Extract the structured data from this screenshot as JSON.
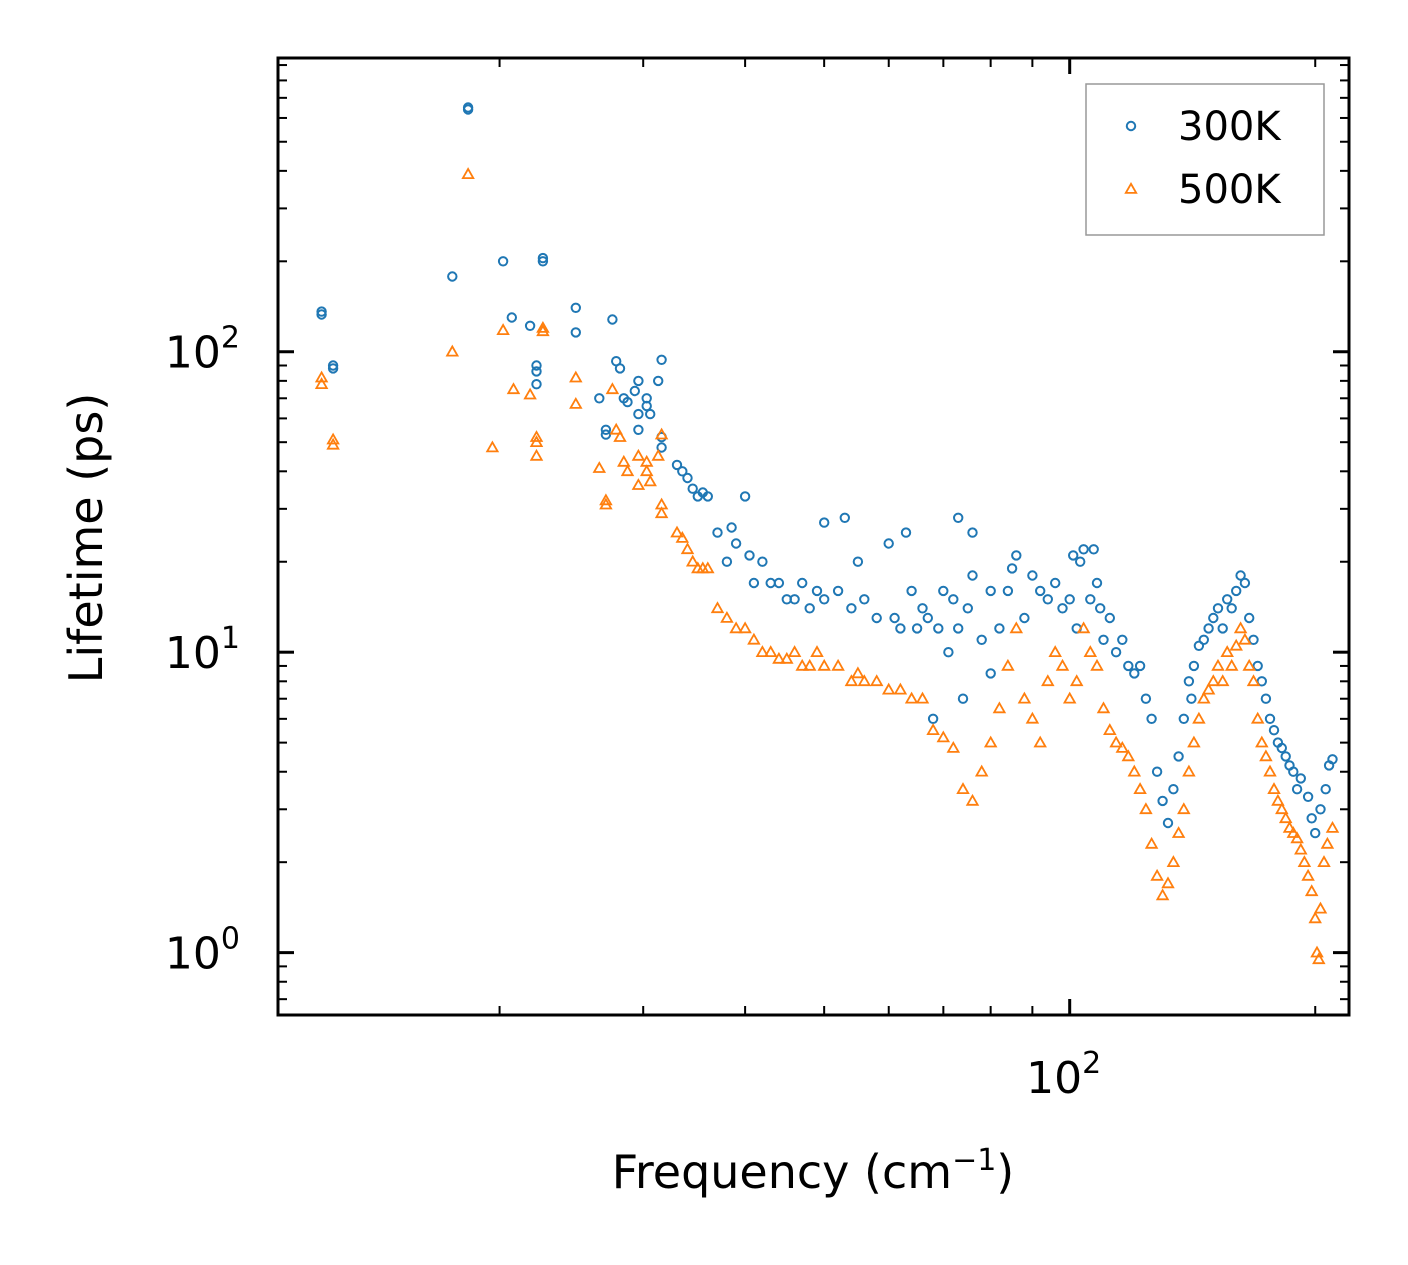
{
  "chart_data": {
    "type": "scatter",
    "xscale": "log",
    "yscale": "log",
    "xlabel": "Frequency (cm⁻¹)",
    "xlabel_base": "Frequency (cm",
    "xlabel_sup": "−1",
    "xlabel_close": ")",
    "ylabel": "Lifetime (ps)",
    "xlim": [
      10.7,
      220
    ],
    "ylim": [
      0.62,
      950
    ],
    "xtick_labels": [
      {
        "value": 100,
        "base": "10",
        "exp": "2"
      }
    ],
    "ytick_labels": [
      {
        "value": 1,
        "base": "10",
        "exp": "0"
      },
      {
        "value": 10,
        "base": "10",
        "exp": "1"
      },
      {
        "value": 100,
        "base": "10",
        "exp": "2"
      }
    ],
    "legend_position": "upper right",
    "series": [
      {
        "name": "300K",
        "color": "#1f77b4",
        "marker": "circle",
        "points": [
          [
            12.1,
            136
          ],
          [
            12.1,
            133
          ],
          [
            12.5,
            90
          ],
          [
            12.5,
            88
          ],
          [
            17.5,
            178
          ],
          [
            18.3,
            650
          ],
          [
            18.3,
            640
          ],
          [
            20.2,
            200
          ],
          [
            20.7,
            130
          ],
          [
            21.8,
            122
          ],
          [
            22.2,
            90
          ],
          [
            22.2,
            86
          ],
          [
            22.2,
            78
          ],
          [
            22.6,
            205
          ],
          [
            22.6,
            200
          ],
          [
            24.8,
            140
          ],
          [
            24.8,
            116
          ],
          [
            26.5,
            70
          ],
          [
            27.0,
            55
          ],
          [
            27.0,
            53
          ],
          [
            27.5,
            128
          ],
          [
            27.8,
            93
          ],
          [
            28.1,
            88
          ],
          [
            28.4,
            70
          ],
          [
            28.7,
            68
          ],
          [
            29.3,
            74
          ],
          [
            29.6,
            80
          ],
          [
            29.6,
            62
          ],
          [
            29.6,
            55
          ],
          [
            30.3,
            70
          ],
          [
            30.3,
            66
          ],
          [
            30.6,
            62
          ],
          [
            31.3,
            80
          ],
          [
            31.6,
            94
          ],
          [
            31.6,
            52
          ],
          [
            31.6,
            48
          ],
          [
            33,
            42
          ],
          [
            33.5,
            40
          ],
          [
            34,
            38
          ],
          [
            34.5,
            35
          ],
          [
            35,
            33
          ],
          [
            35.5,
            34
          ],
          [
            36,
            33
          ],
          [
            37,
            25
          ],
          [
            38,
            20
          ],
          [
            38.5,
            26
          ],
          [
            39,
            23
          ],
          [
            40,
            33
          ],
          [
            40.5,
            21
          ],
          [
            41,
            17
          ],
          [
            42,
            20
          ],
          [
            43,
            17
          ],
          [
            44,
            17
          ],
          [
            45,
            15
          ],
          [
            46,
            15
          ],
          [
            47,
            17
          ],
          [
            48,
            14
          ],
          [
            49,
            16
          ],
          [
            50,
            15
          ],
          [
            50,
            27
          ],
          [
            52,
            16
          ],
          [
            53,
            28
          ],
          [
            54,
            14
          ],
          [
            55,
            20
          ],
          [
            56,
            15
          ],
          [
            58,
            13
          ],
          [
            60,
            23
          ],
          [
            61,
            13
          ],
          [
            62,
            12
          ],
          [
            63,
            25
          ],
          [
            64,
            16
          ],
          [
            65,
            12
          ],
          [
            66,
            14
          ],
          [
            67,
            13
          ],
          [
            68,
            6
          ],
          [
            69,
            12
          ],
          [
            70,
            16
          ],
          [
            71,
            10
          ],
          [
            72,
            15
          ],
          [
            73,
            28
          ],
          [
            73,
            12
          ],
          [
            74,
            7
          ],
          [
            75,
            14
          ],
          [
            76,
            18
          ],
          [
            76,
            25
          ],
          [
            78,
            11
          ],
          [
            80,
            16
          ],
          [
            80,
            8.5
          ],
          [
            82,
            12
          ],
          [
            84,
            16
          ],
          [
            85,
            19
          ],
          [
            86,
            21
          ],
          [
            88,
            13
          ],
          [
            90,
            18
          ],
          [
            92,
            16
          ],
          [
            94,
            15
          ],
          [
            96,
            17
          ],
          [
            98,
            14
          ],
          [
            100,
            15
          ],
          [
            101,
            21
          ],
          [
            102,
            12
          ],
          [
            103,
            20
          ],
          [
            104,
            22
          ],
          [
            106,
            15
          ],
          [
            107,
            22
          ],
          [
            108,
            17
          ],
          [
            109,
            14
          ],
          [
            110,
            11
          ],
          [
            112,
            13
          ],
          [
            114,
            10
          ],
          [
            116,
            11
          ],
          [
            118,
            9
          ],
          [
            120,
            8.5
          ],
          [
            122,
            9
          ],
          [
            124,
            7
          ],
          [
            126,
            6
          ],
          [
            128,
            4
          ],
          [
            130,
            3.2
          ],
          [
            132,
            2.7
          ],
          [
            134,
            3.5
          ],
          [
            136,
            4.5
          ],
          [
            138,
            6
          ],
          [
            140,
            8
          ],
          [
            141,
            7
          ],
          [
            142,
            9
          ],
          [
            144,
            10.5
          ],
          [
            146,
            11
          ],
          [
            148,
            12
          ],
          [
            150,
            13
          ],
          [
            152,
            14
          ],
          [
            154,
            12
          ],
          [
            156,
            15
          ],
          [
            158,
            14
          ],
          [
            160,
            16
          ],
          [
            162,
            18
          ],
          [
            164,
            17
          ],
          [
            166,
            13
          ],
          [
            168,
            11
          ],
          [
            170,
            9
          ],
          [
            172,
            8
          ],
          [
            174,
            7
          ],
          [
            176,
            6
          ],
          [
            178,
            5.5
          ],
          [
            180,
            5
          ],
          [
            182,
            4.8
          ],
          [
            184,
            4.5
          ],
          [
            186,
            4.2
          ],
          [
            188,
            4.0
          ],
          [
            190,
            3.5
          ],
          [
            192,
            3.8
          ],
          [
            196,
            3.3
          ],
          [
            198,
            2.8
          ],
          [
            200,
            2.5
          ],
          [
            203,
            3
          ],
          [
            206,
            3.5
          ],
          [
            208,
            4.2
          ],
          [
            210,
            4.4
          ]
        ]
      },
      {
        "name": "500K",
        "color": "#ff7f0e",
        "marker": "triangle",
        "points": [
          [
            12.1,
            82
          ],
          [
            12.1,
            78
          ],
          [
            12.5,
            51
          ],
          [
            12.5,
            49
          ],
          [
            17.5,
            100
          ],
          [
            18.3,
            390
          ],
          [
            19.6,
            48
          ],
          [
            20.2,
            118
          ],
          [
            20.8,
            75
          ],
          [
            21.8,
            72
          ],
          [
            22.2,
            52
          ],
          [
            22.2,
            50
          ],
          [
            22.2,
            45
          ],
          [
            22.6,
            120
          ],
          [
            22.6,
            117
          ],
          [
            24.8,
            82
          ],
          [
            24.8,
            67
          ],
          [
            26.5,
            41
          ],
          [
            27.0,
            32
          ],
          [
            27.0,
            31
          ],
          [
            27.5,
            75
          ],
          [
            27.8,
            55
          ],
          [
            28.1,
            52
          ],
          [
            28.4,
            43
          ],
          [
            28.7,
            40
          ],
          [
            29.6,
            45
          ],
          [
            29.6,
            36
          ],
          [
            30.3,
            43
          ],
          [
            30.3,
            40
          ],
          [
            30.6,
            37
          ],
          [
            31.3,
            45
          ],
          [
            31.6,
            53
          ],
          [
            31.6,
            31
          ],
          [
            31.6,
            29
          ],
          [
            33,
            25
          ],
          [
            33.5,
            24
          ],
          [
            34,
            22
          ],
          [
            34.5,
            20
          ],
          [
            35,
            19
          ],
          [
            35.5,
            19
          ],
          [
            36,
            19
          ],
          [
            37,
            14
          ],
          [
            38,
            13
          ],
          [
            39,
            12
          ],
          [
            40,
            12
          ],
          [
            41,
            11
          ],
          [
            42,
            10
          ],
          [
            43,
            10
          ],
          [
            44,
            9.5
          ],
          [
            45,
            9.5
          ],
          [
            46,
            10
          ],
          [
            47,
            9
          ],
          [
            48,
            9
          ],
          [
            49,
            10
          ],
          [
            50,
            9
          ],
          [
            52,
            9
          ],
          [
            54,
            8
          ],
          [
            55,
            8.5
          ],
          [
            56,
            8
          ],
          [
            58,
            8
          ],
          [
            60,
            7.5
          ],
          [
            62,
            7.5
          ],
          [
            64,
            7
          ],
          [
            66,
            7
          ],
          [
            68,
            5.5
          ],
          [
            70,
            5.2
          ],
          [
            72,
            4.8
          ],
          [
            74,
            3.5
          ],
          [
            76,
            3.2
          ],
          [
            78,
            4
          ],
          [
            80,
            5
          ],
          [
            82,
            6.5
          ],
          [
            84,
            9
          ],
          [
            86,
            12
          ],
          [
            88,
            7
          ],
          [
            90,
            6
          ],
          [
            92,
            5
          ],
          [
            94,
            8
          ],
          [
            96,
            10
          ],
          [
            98,
            9
          ],
          [
            100,
            7
          ],
          [
            102,
            8
          ],
          [
            104,
            12
          ],
          [
            106,
            10
          ],
          [
            108,
            9
          ],
          [
            110,
            6.5
          ],
          [
            112,
            5.5
          ],
          [
            114,
            5
          ],
          [
            116,
            4.8
          ],
          [
            118,
            4.5
          ],
          [
            120,
            4
          ],
          [
            122,
            3.5
          ],
          [
            124,
            3
          ],
          [
            126,
            2.3
          ],
          [
            128,
            1.8
          ],
          [
            130,
            1.55
          ],
          [
            132,
            1.7
          ],
          [
            134,
            2
          ],
          [
            136,
            2.5
          ],
          [
            138,
            3
          ],
          [
            140,
            4
          ],
          [
            142,
            5
          ],
          [
            144,
            6
          ],
          [
            146,
            7
          ],
          [
            148,
            7.5
          ],
          [
            150,
            8
          ],
          [
            152,
            9
          ],
          [
            154,
            8
          ],
          [
            156,
            10
          ],
          [
            158,
            9
          ],
          [
            160,
            10.5
          ],
          [
            162,
            12
          ],
          [
            164,
            11
          ],
          [
            166,
            9
          ],
          [
            168,
            8
          ],
          [
            170,
            6
          ],
          [
            172,
            5
          ],
          [
            174,
            4.5
          ],
          [
            176,
            4
          ],
          [
            178,
            3.5
          ],
          [
            180,
            3.2
          ],
          [
            182,
            3
          ],
          [
            184,
            2.8
          ],
          [
            186,
            2.6
          ],
          [
            188,
            2.5
          ],
          [
            190,
            2.4
          ],
          [
            192,
            2.2
          ],
          [
            194,
            2.0
          ],
          [
            196,
            1.8
          ],
          [
            198,
            1.6
          ],
          [
            200,
            1.3
          ],
          [
            201,
            1.0
          ],
          [
            202,
            0.95
          ],
          [
            203,
            1.4
          ],
          [
            205,
            2
          ],
          [
            207,
            2.3
          ],
          [
            210,
            2.6
          ]
        ]
      }
    ]
  }
}
